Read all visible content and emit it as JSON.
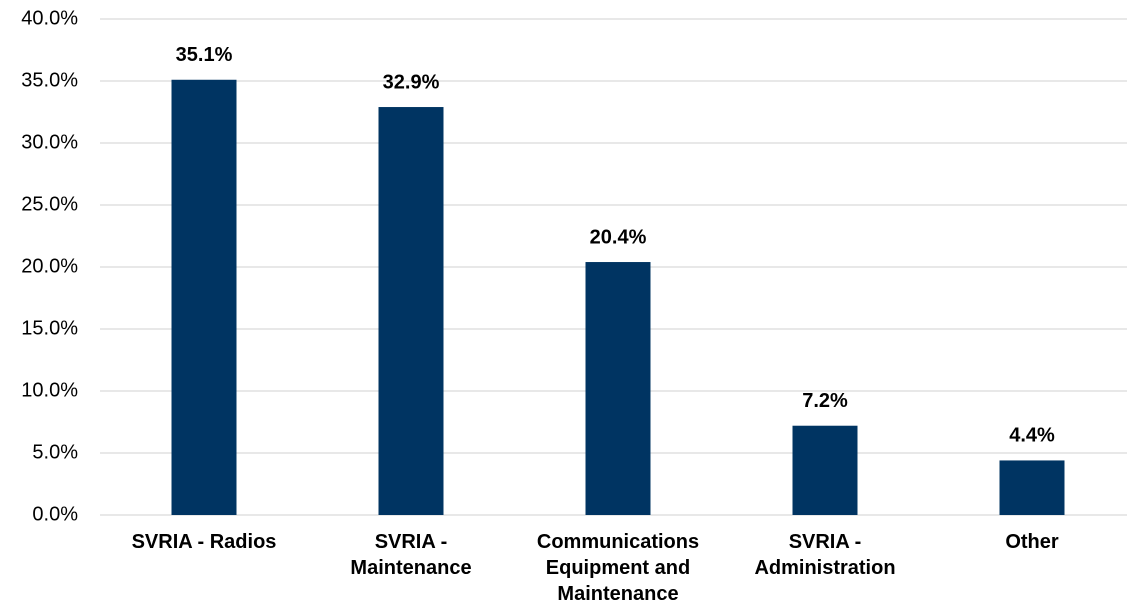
{
  "chart_data": {
    "type": "bar",
    "categories": [
      "SVRIA - Radios",
      "SVRIA - Maintenance",
      "Communications Equipment and Maintenance",
      "SVRIA - Administration",
      "Other"
    ],
    "values": [
      35.1,
      32.9,
      20.4,
      7.2,
      4.4
    ],
    "value_labels": [
      "35.1%",
      "32.9%",
      "20.4%",
      "7.2%",
      "4.4%"
    ],
    "color": "#003462",
    "ylim": [
      0,
      40
    ],
    "yticks": [
      {
        "value": 0,
        "label": "0.0%"
      },
      {
        "value": 5,
        "label": "5.0%"
      },
      {
        "value": 10,
        "label": "10.0%"
      },
      {
        "value": 15,
        "label": "15.0%"
      },
      {
        "value": 20,
        "label": "20.0%"
      },
      {
        "value": 25,
        "label": "25.0%"
      },
      {
        "value": 30,
        "label": "30.0%"
      },
      {
        "value": 35,
        "label": "35.0%"
      },
      {
        "value": 40,
        "label": "40.0%"
      }
    ],
    "grid": true
  }
}
